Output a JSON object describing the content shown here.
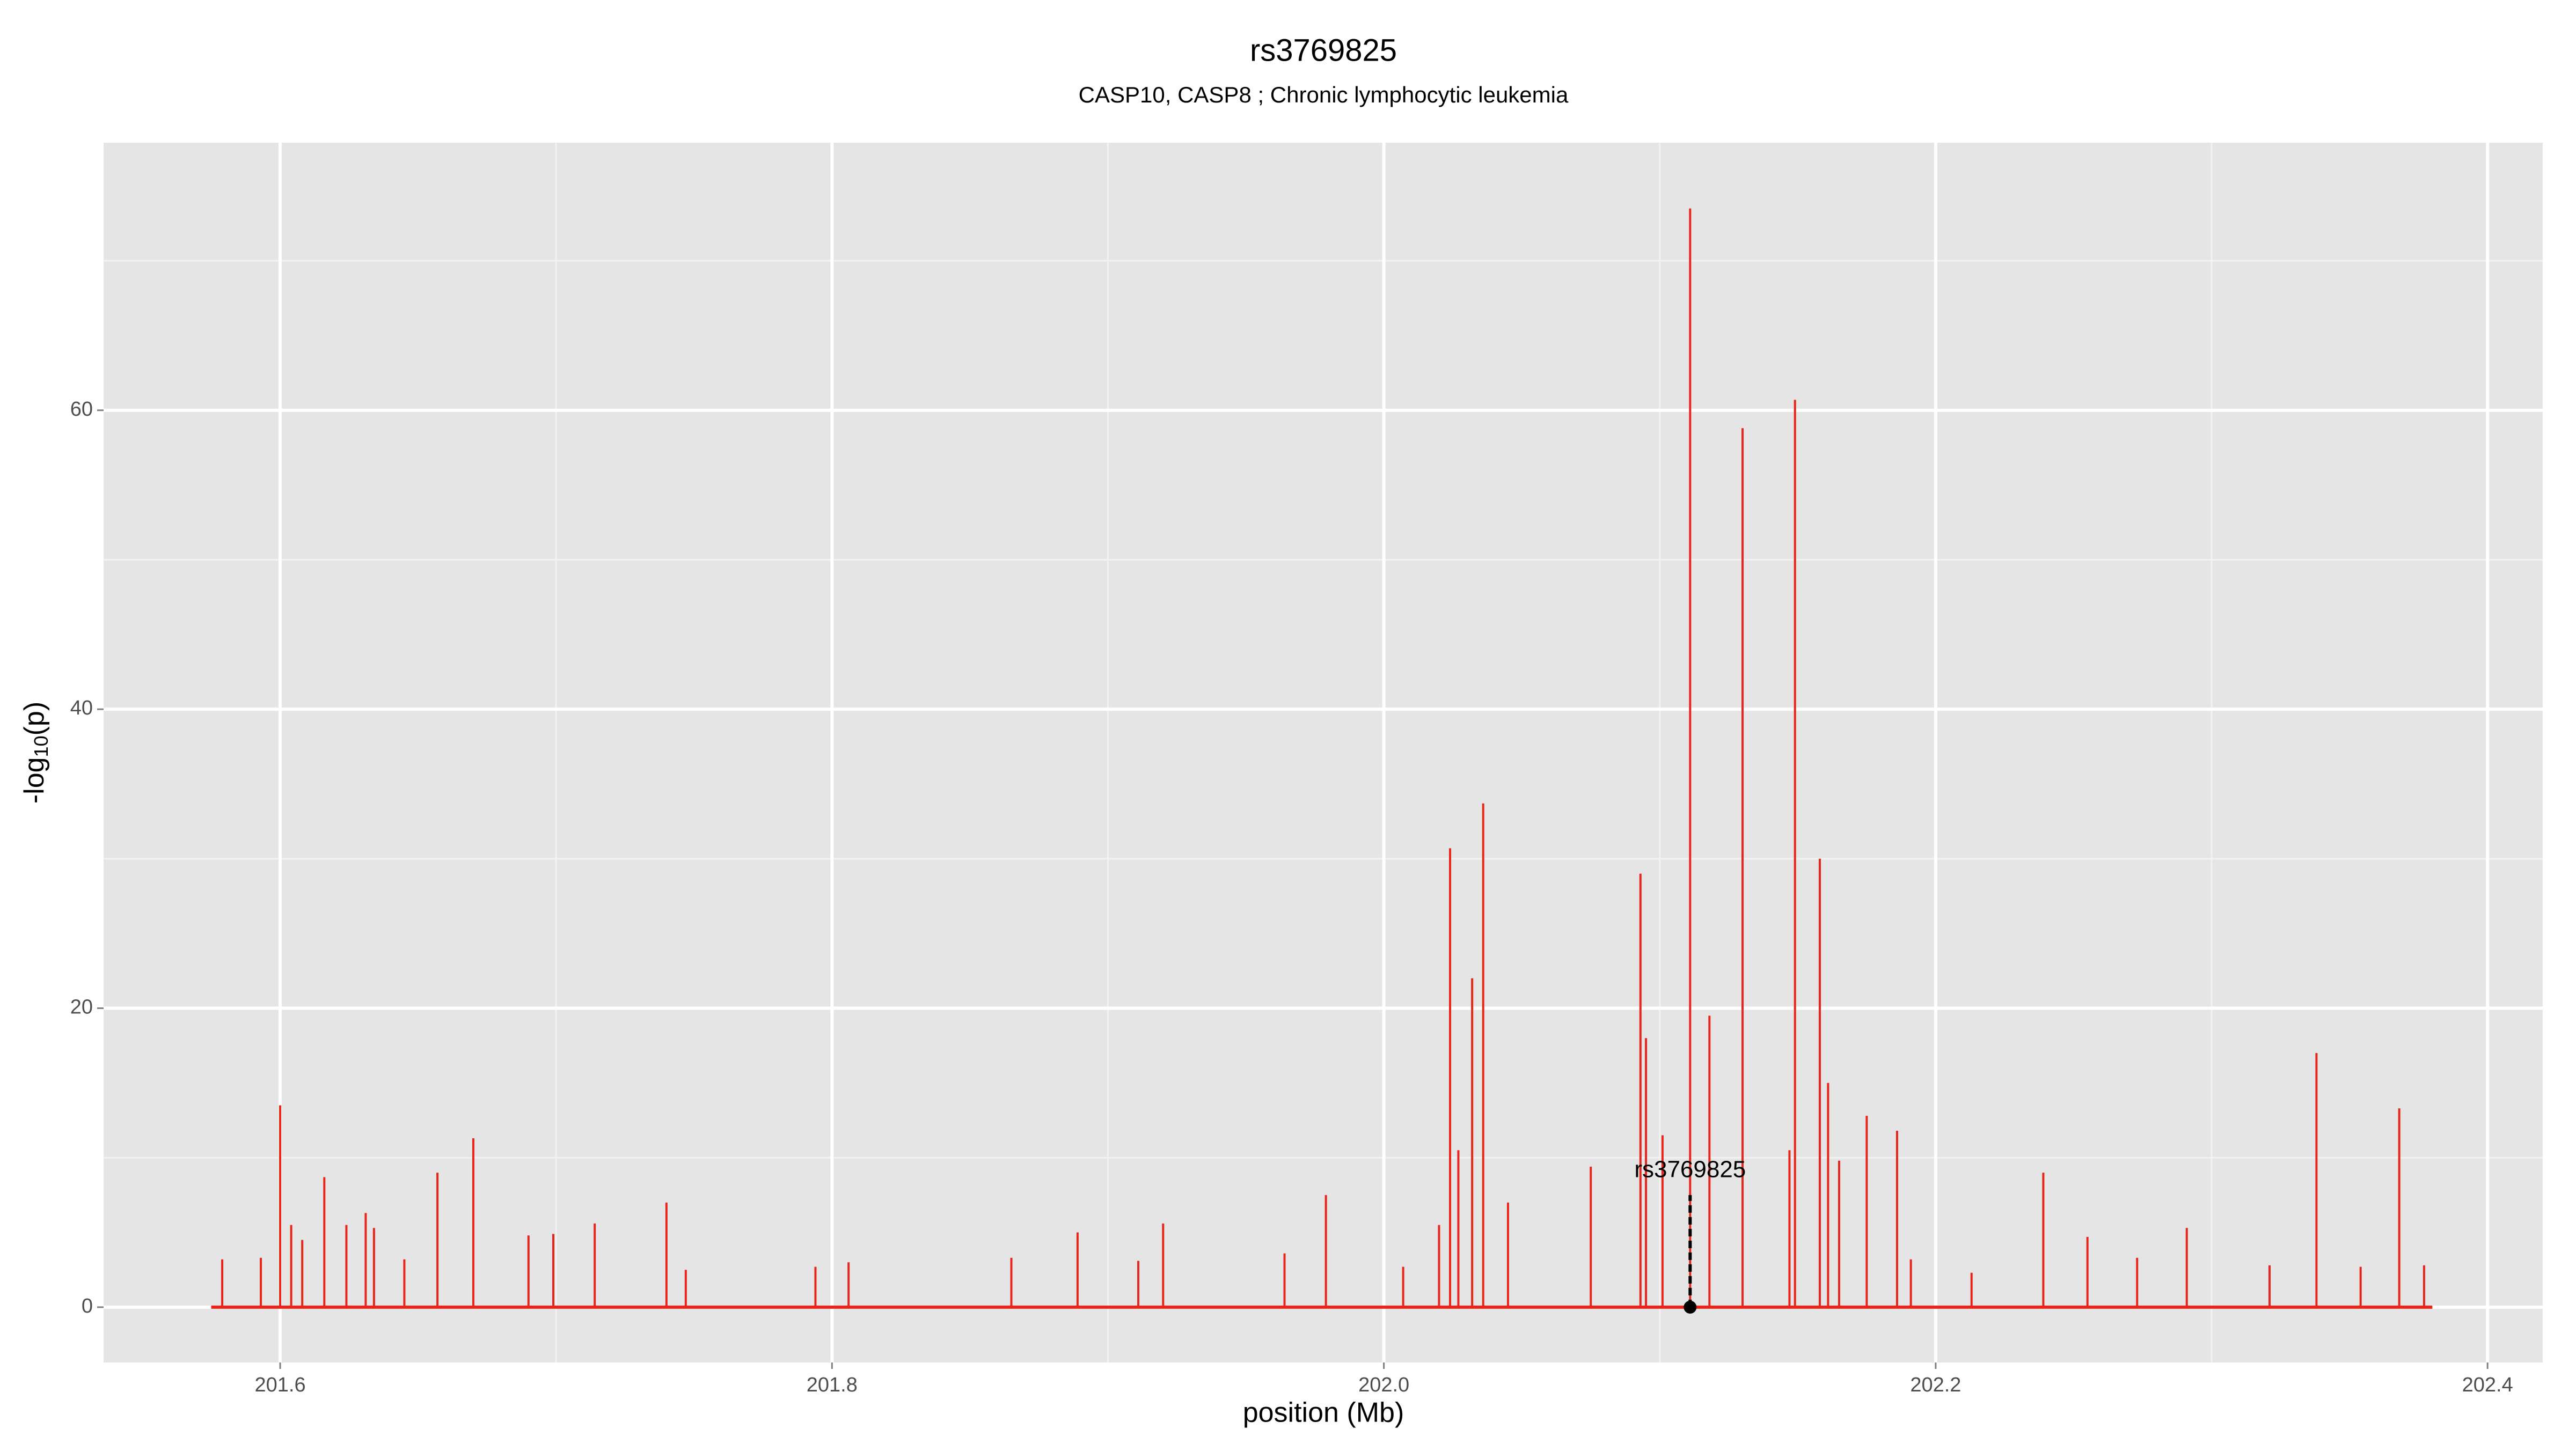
{
  "chart_data": {
    "type": "needle",
    "title": "rs3769825",
    "subtitle": "CASP10, CASP8 ; Chronic lymphocytic leukemia",
    "x_label": "position (Mb)",
    "y_label_parts": [
      "-log",
      "10",
      "(p)"
    ],
    "color": "#e8251a",
    "x": [
      201.575,
      201.579,
      201.593,
      201.6,
      201.604,
      201.608,
      201.616,
      201.624,
      201.631,
      201.634,
      201.645,
      201.657,
      201.67,
      201.69,
      201.699,
      201.714,
      201.74,
      201.747,
      201.794,
      201.806,
      201.865,
      201.889,
      201.911,
      201.92,
      201.964,
      201.979,
      202.007,
      202.02,
      202.024,
      202.027,
      202.032,
      202.036,
      202.045,
      202.075,
      202.093,
      202.095,
      202.101,
      202.111,
      202.118,
      202.13,
      202.147,
      202.149,
      202.158,
      202.161,
      202.165,
      202.175,
      202.186,
      202.191,
      202.213,
      202.239,
      202.255,
      202.273,
      202.291,
      202.321,
      202.338,
      202.354,
      202.368,
      202.377,
      202.38
    ],
    "values": [
      0,
      3.2,
      3.3,
      13.5,
      5.5,
      4.5,
      8.7,
      5.5,
      6.3,
      5.3,
      3.2,
      9.0,
      11.3,
      4.8,
      4.9,
      5.6,
      7.0,
      2.5,
      2.7,
      3.0,
      3.3,
      5.0,
      3.1,
      5.6,
      3.6,
      7.5,
      2.7,
      5.5,
      30.7,
      10.5,
      22,
      33.7,
      7.0,
      9.4,
      29,
      18,
      11.5,
      73.5,
      19.5,
      58.8,
      10.5,
      60.7,
      30,
      15,
      9.8,
      12.8,
      11.8,
      3.2,
      2.3,
      9.0,
      4.7,
      3.3,
      5.3,
      2.8,
      17,
      2.7,
      13.3,
      2.8,
      0
    ],
    "annotation": {
      "label": "rs3769825",
      "x": 202.111,
      "y": 0,
      "line_top": 7.5
    },
    "xlim": [
      201.536,
      202.42
    ],
    "ylim": [
      -3.7,
      77.9
    ],
    "xticks": [
      201.6,
      201.8,
      {
        "value": 202.0,
        "label": "202.0"
      },
      202.2,
      202.4
    ],
    "yticks": [
      0,
      20,
      40,
      60
    ],
    "minor_xticks": [
      201.7,
      201.9,
      202.1,
      202.3
    ],
    "minor_yticks": [
      10,
      30,
      50,
      70
    ],
    "grid": true
  }
}
